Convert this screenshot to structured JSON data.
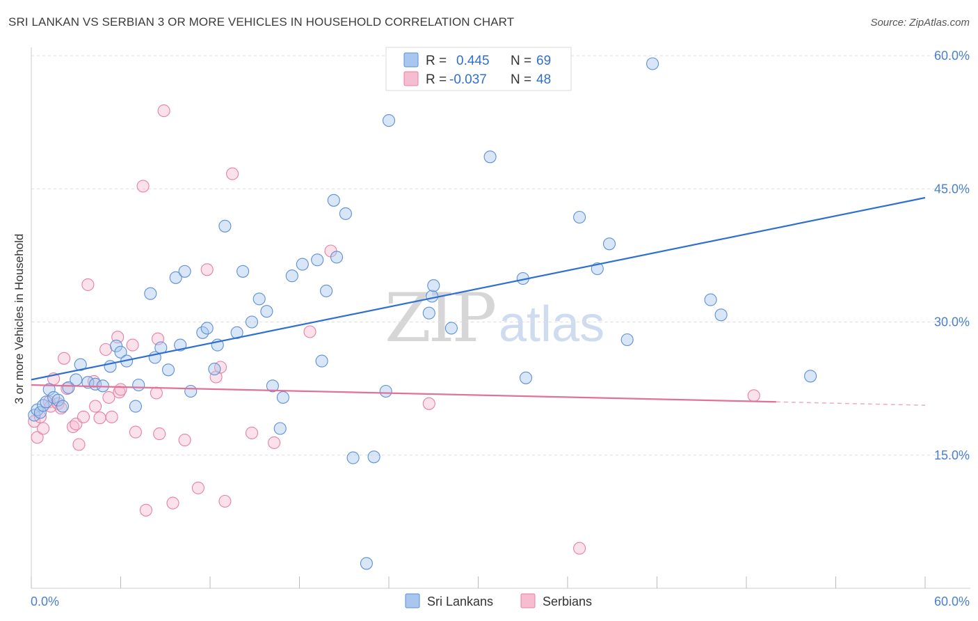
{
  "title": "SRI LANKAN VS SERBIAN 3 OR MORE VEHICLES IN HOUSEHOLD CORRELATION CHART",
  "source": "Source: ZipAtlas.com",
  "watermark": {
    "zip": "ZIP",
    "atlas": "atlas"
  },
  "colors": {
    "blue_fill": "#a9c7ee",
    "blue_stroke": "#5b8fd6",
    "blue_line": "#2f6fd0",
    "pink_fill": "#f6bdd0",
    "pink_stroke": "#e77fa3",
    "pink_line": "#e0729a",
    "tick_text": "#4a7fcf",
    "grid": "#dddddd"
  },
  "legend": {
    "r_label": "R =",
    "n_label": "N =",
    "series": [
      {
        "r_value": "0.445",
        "n_value": "69"
      },
      {
        "r_value": "-0.037",
        "n_value": "48"
      }
    ]
  },
  "chart_data": {
    "type": "scatter",
    "title": "SRI LANKAN VS SERBIAN 3 OR MORE VEHICLES IN HOUSEHOLD CORRELATION CHART",
    "xlabel": "",
    "ylabel": "3 or more Vehicles in Household",
    "xlim": [
      0,
      60
    ],
    "ylim": [
      0,
      60
    ],
    "x_tick_labels": [
      "0.0%",
      "60.0%"
    ],
    "y_ticks": [
      15,
      30,
      45,
      60
    ],
    "y_tick_labels": [
      "15.0%",
      "30.0%",
      "45.0%",
      "60.0%"
    ],
    "legend_position": "bottom-center",
    "series": [
      {
        "name": "Sri Lankans",
        "color": "#5b8fd6",
        "trend": {
          "x": [
            0,
            60
          ],
          "y": [
            23.5,
            44.0
          ],
          "dashed_after": null
        },
        "points": [
          [
            0.2,
            19.5
          ],
          [
            0.4,
            20.1
          ],
          [
            0.6,
            19.8
          ],
          [
            0.8,
            20.6
          ],
          [
            1.0,
            21.0
          ],
          [
            1.2,
            22.4
          ],
          [
            1.5,
            21.5
          ],
          [
            1.8,
            21.2
          ],
          [
            2.1,
            20.5
          ],
          [
            2.5,
            22.6
          ],
          [
            3.0,
            23.5
          ],
          [
            3.3,
            25.2
          ],
          [
            3.8,
            23.2
          ],
          [
            4.3,
            23.0
          ],
          [
            4.8,
            22.8
          ],
          [
            5.3,
            25.0
          ],
          [
            5.7,
            27.3
          ],
          [
            6.0,
            26.6
          ],
          [
            6.4,
            25.6
          ],
          [
            7.0,
            20.5
          ],
          [
            7.2,
            22.9
          ],
          [
            8.0,
            33.2
          ],
          [
            8.3,
            26.0
          ],
          [
            8.7,
            27.1
          ],
          [
            9.2,
            24.6
          ],
          [
            9.7,
            35.0
          ],
          [
            10.0,
            27.4
          ],
          [
            10.3,
            35.7
          ],
          [
            10.7,
            22.2
          ],
          [
            11.5,
            28.8
          ],
          [
            11.8,
            29.3
          ],
          [
            12.3,
            24.7
          ],
          [
            12.5,
            27.4
          ],
          [
            13.0,
            40.8
          ],
          [
            13.8,
            28.8
          ],
          [
            14.2,
            35.7
          ],
          [
            14.8,
            30.0
          ],
          [
            15.3,
            32.6
          ],
          [
            15.8,
            31.2
          ],
          [
            16.2,
            22.8
          ],
          [
            16.7,
            18.0
          ],
          [
            16.9,
            21.5
          ],
          [
            17.5,
            35.2
          ],
          [
            18.2,
            36.5
          ],
          [
            19.2,
            37.0
          ],
          [
            19.5,
            25.6
          ],
          [
            19.8,
            33.5
          ],
          [
            20.3,
            43.7
          ],
          [
            20.5,
            37.3
          ],
          [
            21.1,
            42.2
          ],
          [
            21.6,
            14.7
          ],
          [
            22.5,
            2.8
          ],
          [
            23.0,
            14.8
          ],
          [
            23.8,
            22.2
          ],
          [
            24.0,
            52.7
          ],
          [
            26.7,
            31.0
          ],
          [
            26.9,
            32.9
          ],
          [
            27.0,
            34.1
          ],
          [
            28.2,
            29.3
          ],
          [
            30.8,
            48.6
          ],
          [
            33.0,
            34.9
          ],
          [
            33.2,
            23.7
          ],
          [
            36.8,
            41.8
          ],
          [
            38.0,
            36.0
          ],
          [
            38.8,
            38.8
          ],
          [
            40.0,
            28.0
          ],
          [
            41.7,
            59.1
          ],
          [
            45.6,
            32.5
          ],
          [
            46.3,
            30.8
          ],
          [
            52.3,
            23.9
          ]
        ]
      },
      {
        "name": "Serbians",
        "color": "#e77fa3",
        "trend": {
          "x": [
            0,
            50
          ],
          "y": [
            22.9,
            21.0
          ],
          "dashed_after": 50
        },
        "points": [
          [
            0.2,
            18.8
          ],
          [
            0.4,
            17.0
          ],
          [
            0.6,
            19.3
          ],
          [
            0.8,
            18.0
          ],
          [
            1.2,
            21.0
          ],
          [
            1.3,
            20.5
          ],
          [
            1.5,
            23.6
          ],
          [
            1.8,
            20.8
          ],
          [
            2.0,
            20.3
          ],
          [
            2.2,
            25.9
          ],
          [
            2.4,
            22.5
          ],
          [
            2.8,
            18.2
          ],
          [
            3.0,
            18.5
          ],
          [
            3.2,
            16.2
          ],
          [
            3.5,
            19.3
          ],
          [
            3.8,
            34.2
          ],
          [
            4.2,
            23.3
          ],
          [
            4.3,
            20.5
          ],
          [
            4.6,
            19.2
          ],
          [
            5.0,
            26.9
          ],
          [
            5.2,
            21.5
          ],
          [
            5.4,
            19.3
          ],
          [
            5.8,
            28.3
          ],
          [
            5.9,
            22.1
          ],
          [
            6.0,
            22.4
          ],
          [
            6.8,
            27.4
          ],
          [
            7.0,
            17.6
          ],
          [
            7.5,
            45.3
          ],
          [
            7.7,
            8.8
          ],
          [
            8.4,
            22.0
          ],
          [
            8.5,
            28.1
          ],
          [
            8.6,
            17.4
          ],
          [
            8.9,
            53.8
          ],
          [
            9.5,
            9.6
          ],
          [
            10.3,
            16.7
          ],
          [
            11.2,
            11.3
          ],
          [
            11.8,
            35.9
          ],
          [
            12.4,
            23.8
          ],
          [
            12.7,
            24.9
          ],
          [
            13.0,
            9.8
          ],
          [
            13.5,
            46.7
          ],
          [
            14.8,
            17.5
          ],
          [
            16.3,
            16.4
          ],
          [
            20.1,
            38.0
          ],
          [
            18.7,
            28.9
          ],
          [
            26.7,
            20.8
          ],
          [
            36.8,
            4.5
          ],
          [
            48.5,
            21.7
          ]
        ]
      }
    ]
  }
}
